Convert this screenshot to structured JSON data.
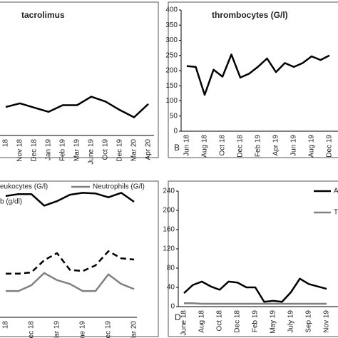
{
  "chart_data": [
    {
      "type": "line",
      "title": "tacrolimus",
      "categories": [
        "18",
        "Nov 18",
        "Dec 18",
        "Jan 19",
        "Feb 19",
        "Mar 19",
        "June 19",
        "Oct 19",
        "Dec 19",
        "Mar 20",
        "Apr 20"
      ],
      "ylim": [
        0,
        10
      ],
      "series": [
        {
          "name": null,
          "color": "#000000",
          "values": [
            2.35,
            2.65,
            2.3,
            1.95,
            2.5,
            2.5,
            3.2,
            2.8,
            2.1,
            1.5,
            2.6
          ]
        }
      ]
    },
    {
      "type": "line",
      "title": "thrombocytes (G/l)",
      "panel": "B",
      "categories": [
        "Jun 18",
        null,
        "Aug 18",
        null,
        "Oct 18",
        null,
        "Dec 18",
        null,
        "Feb 19",
        null,
        "Apr 19",
        null,
        "Jun 19",
        null,
        "Aug 19",
        null,
        "Dec 19"
      ],
      "ylim": [
        0,
        400
      ],
      "yticks": [
        0,
        50,
        100,
        150,
        200,
        250,
        300,
        350,
        400
      ],
      "series": [
        {
          "name": null,
          "color": "#000000",
          "values": [
            215,
            212,
            120,
            203,
            180,
            253,
            177,
            190,
            213,
            240,
            195,
            225,
            212,
            225,
            247,
            235,
            250
          ]
        }
      ]
    },
    {
      "type": "line",
      "categories": [
        "18",
        null,
        "Dec 18",
        null,
        "Mar 19",
        null,
        "June 19",
        null,
        "Dec 19",
        null,
        "Mar 20"
      ],
      "ylim": [
        0,
        20
      ],
      "series": [
        {
          "name": "eukocytes (G/l)",
          "color": "#000000",
          "dashed": true,
          "values": [
            6.8,
            6.8,
            7.0,
            8.9,
            10.0,
            7.4,
            7.2,
            8.1,
            10.3,
            9.2,
            9.0
          ]
        },
        {
          "name": "Neutrophils (G/l)",
          "color": "#808080",
          "values": [
            4.1,
            4.1,
            5.0,
            6.9,
            5.8,
            5.2,
            4.1,
            4.1,
            6.7,
            5.2,
            4.4
          ]
        },
        {
          "name": "b (g/dl)",
          "color": "#000000",
          "values": [
            18.9,
            19.2,
            19.2,
            17.4,
            18.1,
            19.1,
            19.4,
            19.3,
            18.7,
            19.4,
            18.0
          ]
        }
      ]
    },
    {
      "type": "line",
      "panel": "D",
      "categories": [
        "June 18",
        null,
        "Aug 18",
        null,
        "Oct 18",
        null,
        "Dec 18",
        null,
        "Feb 19",
        null,
        "May 19",
        null,
        "July 19",
        null,
        "Sep 19",
        null,
        "Nov 19"
      ],
      "ylim": [
        0,
        240
      ],
      "yticks": [
        0,
        40,
        80,
        120,
        160,
        200,
        240
      ],
      "series": [
        {
          "name": "A",
          "color": "#000000",
          "values": [
            28,
            45,
            52,
            42,
            35,
            52,
            50,
            40,
            40,
            10,
            12,
            10,
            30,
            58,
            47,
            42,
            37
          ]
        },
        {
          "name": "T",
          "color": "#808080",
          "values": [
            7,
            7,
            6,
            6,
            6,
            6,
            6,
            6,
            6,
            6,
            6,
            6,
            6,
            6,
            6,
            6,
            6
          ]
        }
      ]
    }
  ]
}
